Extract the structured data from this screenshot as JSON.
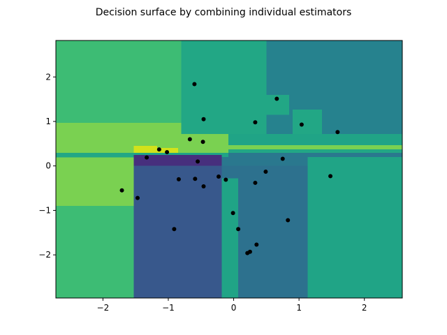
{
  "chart_data": {
    "type": "heatmap",
    "title": "Decision surface by combining individual estimators",
    "xlabel": "",
    "ylabel": "",
    "xlim": [
      -2.72,
      2.58
    ],
    "ylim": [
      -2.97,
      2.82
    ],
    "grid": false,
    "x_ticks": [
      -2,
      -1,
      0,
      1,
      2
    ],
    "y_ticks": [
      -2,
      -1,
      0,
      1,
      2
    ],
    "x_tick_labels": [
      "−2",
      "−1",
      "0",
      "1",
      "2"
    ],
    "y_tick_labels": [
      "−2",
      "−1",
      "0",
      "1",
      "2"
    ],
    "regions": [
      {
        "x0": -2.72,
        "x1": 2.58,
        "y0": -2.97,
        "y1": 2.82,
        "color": "#20a486"
      },
      {
        "x0": -2.72,
        "x1": -1.53,
        "y0": -2.97,
        "y1": 2.82,
        "color": "#3dbc74"
      },
      {
        "x0": -1.53,
        "x1": -0.8,
        "y0": 0.95,
        "y1": 2.82,
        "color": "#3dbc74"
      },
      {
        "x0": -0.8,
        "x1": 0.5,
        "y0": 0.72,
        "y1": 2.82,
        "color": "#22a785"
      },
      {
        "x0": 0.5,
        "x1": 2.58,
        "y0": 0.72,
        "y1": 2.82,
        "color": "#26828e"
      },
      {
        "x0": 0.48,
        "x1": 0.85,
        "y0": 1.15,
        "y1": 1.6,
        "color": "#22a785"
      },
      {
        "x0": 0.9,
        "x1": 1.35,
        "y0": 0.72,
        "y1": 1.27,
        "color": "#22a785"
      },
      {
        "x0": -2.72,
        "x1": -1.53,
        "y0": -0.9,
        "y1": 0.97,
        "color": "#7ad151"
      },
      {
        "x0": -2.72,
        "x1": -1.53,
        "y0": 0.19,
        "y1": 0.29,
        "color": "#22a785"
      },
      {
        "x0": -1.53,
        "x1": -0.8,
        "y0": 0.29,
        "y1": 0.97,
        "color": "#7ad151"
      },
      {
        "x0": -0.8,
        "x1": -0.08,
        "y0": 0.29,
        "y1": 0.72,
        "color": "#7ad151"
      },
      {
        "x0": -0.08,
        "x1": 2.58,
        "y0": 0.37,
        "y1": 0.47,
        "color": "#7ad151"
      },
      {
        "x0": -0.08,
        "x1": 2.58,
        "y0": 0.29,
        "y1": 0.37,
        "color": "#22a785"
      },
      {
        "x0": -0.08,
        "x1": 2.58,
        "y0": 0.2,
        "y1": 0.29,
        "color": "#2a788e"
      },
      {
        "x0": -1.53,
        "x1": -1.17,
        "y0": 0.29,
        "y1": 0.45,
        "color": "#d2e21b"
      },
      {
        "x0": -1.17,
        "x1": -0.85,
        "y0": 0.29,
        "y1": 0.4,
        "color": "#d2e21b"
      },
      {
        "x0": -1.53,
        "x1": -0.18,
        "y0": 0.0,
        "y1": 0.25,
        "color": "#472f7d"
      },
      {
        "x0": -1.53,
        "x1": -0.18,
        "y0": -2.97,
        "y1": 0.0,
        "color": "#38588c"
      },
      {
        "x0": -0.18,
        "x1": 1.13,
        "y0": -2.97,
        "y1": 0.0,
        "color": "#2d718e"
      },
      {
        "x0": -0.18,
        "x1": 0.07,
        "y0": -2.97,
        "y1": -0.28,
        "color": "#20a486"
      },
      {
        "x0": 1.13,
        "x1": 2.58,
        "y0": -2.97,
        "y1": 0.2,
        "color": "#20a486"
      },
      {
        "x0": -0.18,
        "x1": 1.13,
        "y0": 0.0,
        "y1": 0.2,
        "color": "#2a788e"
      }
    ],
    "points": [
      {
        "x": -0.6,
        "y": 1.84
      },
      {
        "x": 0.66,
        "y": 1.51
      },
      {
        "x": -0.46,
        "y": 1.05
      },
      {
        "x": 0.33,
        "y": 0.98
      },
      {
        "x": 1.04,
        "y": 0.93
      },
      {
        "x": 1.59,
        "y": 0.76
      },
      {
        "x": -0.67,
        "y": 0.6
      },
      {
        "x": -0.47,
        "y": 0.54
      },
      {
        "x": -1.14,
        "y": 0.37
      },
      {
        "x": -1.02,
        "y": 0.31
      },
      {
        "x": -1.33,
        "y": 0.19
      },
      {
        "x": 0.75,
        "y": 0.16
      },
      {
        "x": -0.55,
        "y": 0.1
      },
      {
        "x": 0.49,
        "y": -0.13
      },
      {
        "x": -0.23,
        "y": -0.24
      },
      {
        "x": 1.48,
        "y": -0.23
      },
      {
        "x": -0.84,
        "y": -0.3
      },
      {
        "x": -0.59,
        "y": -0.29
      },
      {
        "x": -0.12,
        "y": -0.31
      },
      {
        "x": 0.33,
        "y": -0.38
      },
      {
        "x": -0.46,
        "y": -0.46
      },
      {
        "x": -1.71,
        "y": -0.55
      },
      {
        "x": -1.47,
        "y": -0.72
      },
      {
        "x": -0.01,
        "y": -1.06
      },
      {
        "x": 0.83,
        "y": -1.22
      },
      {
        "x": -0.91,
        "y": -1.42
      },
      {
        "x": 0.07,
        "y": -1.42
      },
      {
        "x": 0.35,
        "y": -1.77
      },
      {
        "x": 0.25,
        "y": -1.93
      },
      {
        "x": 0.21,
        "y": -1.96
      }
    ]
  },
  "colors": {
    "point": "#000000",
    "spine": "#000000",
    "background": "#ffffff"
  }
}
